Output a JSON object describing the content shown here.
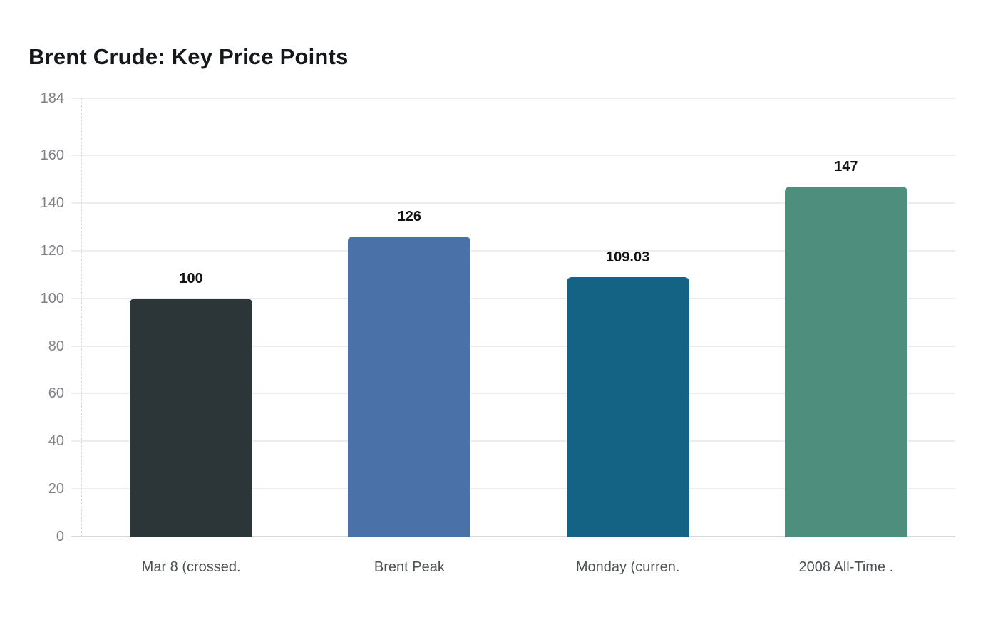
{
  "chart_data": {
    "type": "bar",
    "title": "Brent Crude: Key Price Points",
    "categories": [
      "Mar 8 (crossed.",
      "Brent Peak",
      "Monday (curren.",
      "2008 All-Time ."
    ],
    "values": [
      100,
      126,
      109.03,
      147
    ],
    "value_labels": [
      "100",
      "126",
      "109.03",
      "147"
    ],
    "bar_colors": [
      "#2c3537",
      "#4a72a8",
      "#156384",
      "#4e8e7c"
    ],
    "xlabel": "",
    "ylabel": "",
    "ylim": [
      0,
      184
    ],
    "yticks": [
      0,
      20,
      40,
      60,
      80,
      100,
      120,
      140,
      160,
      184
    ],
    "grid": true,
    "legend": false,
    "colors": {
      "background": "#ffffff",
      "grid_line": "#ededed",
      "baseline": "#d9d9d9",
      "y_axis_dashed": "#d8d8d8",
      "y_tick_text": "#7e8287",
      "x_tick_text": "#4c5156",
      "value_text": "#131313",
      "title_text": "#15181b"
    }
  }
}
